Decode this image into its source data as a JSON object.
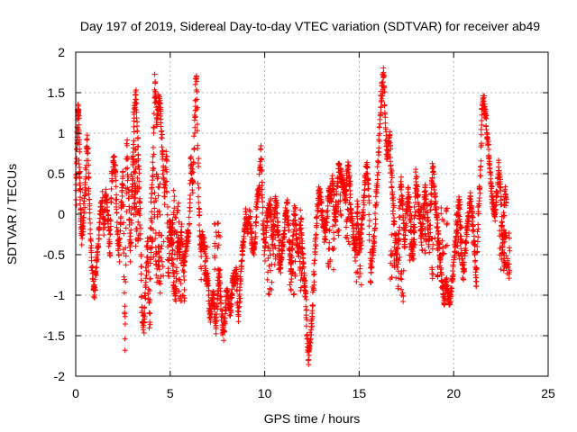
{
  "chart_data": {
    "type": "scatter",
    "title": "Day 197 of 2019, Sidereal Day-to-day VTEC variation (SDTVAR) for receiver ab49",
    "xlabel": "GPS time / hours",
    "ylabel": "SDTVAR / TECUs",
    "xlim": [
      0,
      25
    ],
    "ylim": [
      -2,
      2
    ],
    "x_ticks": [
      0,
      5,
      10,
      15,
      20,
      25
    ],
    "x_tick_labels": [
      "0",
      "5",
      "10",
      "15",
      "20",
      "25"
    ],
    "y_ticks": [
      -2,
      -1.5,
      -1,
      -0.5,
      0,
      0.5,
      1,
      1.5,
      2
    ],
    "y_tick_labels": [
      "-2",
      "-1.5",
      "-1",
      "-0.5",
      "0",
      "0.5",
      "1",
      "1.5",
      "2"
    ],
    "grid": true,
    "marker": "plus",
    "color": "#ff0000",
    "series": [
      {
        "name": "SDTVAR",
        "trace": [
          [
            0.0,
            0.0
          ],
          [
            0.05,
            0.7
          ],
          [
            0.1,
            1.25
          ],
          [
            0.15,
            1.3
          ],
          [
            0.2,
            0.6
          ],
          [
            0.25,
            0.2
          ],
          [
            0.3,
            -0.3
          ],
          [
            0.4,
            -0.1
          ],
          [
            0.5,
            0.3
          ],
          [
            0.6,
            0.95
          ],
          [
            0.7,
            0.3
          ],
          [
            0.8,
            -0.4
          ],
          [
            0.9,
            -0.8
          ],
          [
            1.0,
            -1.0
          ],
          [
            1.1,
            -0.6
          ],
          [
            1.2,
            -0.3
          ],
          [
            1.3,
            0.0
          ],
          [
            1.4,
            0.2
          ],
          [
            1.5,
            -0.2
          ],
          [
            1.6,
            0.3
          ],
          [
            1.7,
            0.0
          ],
          [
            1.8,
            -0.5
          ],
          [
            1.9,
            0.4
          ],
          [
            2.0,
            0.7
          ],
          [
            2.1,
            0.5
          ],
          [
            2.2,
            -0.2
          ],
          [
            2.3,
            -0.5
          ],
          [
            2.4,
            0.1
          ],
          [
            2.5,
            0.5
          ],
          [
            2.6,
            -1.6
          ],
          [
            2.7,
            0.9
          ],
          [
            2.8,
            0.2
          ],
          [
            2.9,
            -0.5
          ],
          [
            3.0,
            0.5
          ],
          [
            3.1,
            1.3
          ],
          [
            3.2,
            1.45
          ],
          [
            3.3,
            0.8
          ],
          [
            3.4,
            0.0
          ],
          [
            3.5,
            -1.2
          ],
          [
            3.6,
            -1.4
          ],
          [
            3.7,
            -0.9
          ],
          [
            3.8,
            -0.3
          ],
          [
            3.9,
            -1.4
          ],
          [
            4.0,
            0.2
          ],
          [
            4.1,
            0.6
          ],
          [
            4.2,
            1.7
          ],
          [
            4.3,
            1.1
          ],
          [
            4.4,
            1.5
          ],
          [
            4.5,
            1.2
          ],
          [
            4.6,
            0.7
          ],
          [
            4.7,
            0.2
          ],
          [
            4.8,
            0.8
          ],
          [
            4.9,
            -0.8
          ],
          [
            5.0,
            -0.1
          ],
          [
            5.1,
            -0.5
          ],
          [
            5.2,
            -0.9
          ],
          [
            5.3,
            -1.0
          ],
          [
            5.4,
            -0.3
          ],
          [
            5.5,
            -0.5
          ],
          [
            5.6,
            -0.2
          ],
          [
            5.7,
            -0.7
          ],
          [
            5.8,
            -0.5
          ],
          [
            5.9,
            -0.3
          ],
          [
            6.0,
            -0.2
          ],
          [
            6.1,
            0.7
          ],
          [
            6.2,
            0.3
          ],
          [
            6.3,
            1.2
          ],
          [
            6.4,
            1.75
          ],
          [
            6.5,
            0.3
          ],
          [
            6.6,
            -0.4
          ],
          [
            6.7,
            -0.3
          ],
          [
            6.8,
            -0.4
          ],
          [
            6.9,
            -0.8
          ],
          [
            7.0,
            -0.8
          ],
          [
            7.1,
            -1.3
          ],
          [
            7.2,
            -1.1
          ],
          [
            7.3,
            -1.0
          ],
          [
            7.4,
            -1.4
          ],
          [
            7.5,
            -1.0
          ],
          [
            7.6,
            -0.7
          ],
          [
            7.7,
            -1.2
          ],
          [
            7.8,
            -1.5
          ],
          [
            7.9,
            -1.3
          ],
          [
            8.0,
            -0.9
          ],
          [
            8.1,
            -1.1
          ],
          [
            8.2,
            -1.2
          ],
          [
            8.3,
            -0.8
          ],
          [
            8.4,
            -0.8
          ],
          [
            8.5,
            -0.7
          ],
          [
            8.6,
            -1.3
          ],
          [
            8.7,
            -0.9
          ],
          [
            8.8,
            -0.5
          ],
          [
            8.9,
            -0.3
          ],
          [
            9.0,
            0.0
          ],
          [
            9.1,
            -0.2
          ],
          [
            9.2,
            0.0
          ],
          [
            9.3,
            -0.3
          ],
          [
            9.4,
            -0.5
          ],
          [
            9.5,
            -0.3
          ],
          [
            9.6,
            0.2
          ],
          [
            9.7,
            0.3
          ],
          [
            9.8,
            0.8
          ],
          [
            9.9,
            0.0
          ],
          [
            10.0,
            -0.5
          ],
          [
            10.1,
            -0.1
          ],
          [
            10.2,
            0.05
          ],
          [
            10.3,
            0.1
          ],
          [
            10.4,
            -0.3
          ],
          [
            10.5,
            -0.1
          ],
          [
            10.6,
            0.2
          ],
          [
            10.7,
            -0.2
          ],
          [
            10.8,
            -0.6
          ],
          [
            10.9,
            -0.5
          ],
          [
            11.0,
            -0.3
          ],
          [
            11.1,
            0.0
          ],
          [
            11.2,
            0.1
          ],
          [
            11.3,
            -0.4
          ],
          [
            11.4,
            -0.7
          ],
          [
            11.5,
            -0.2
          ],
          [
            11.6,
            0.05
          ],
          [
            11.7,
            -0.3
          ],
          [
            11.8,
            -0.5
          ],
          [
            11.9,
            0.0
          ],
          [
            12.0,
            -0.5
          ],
          [
            12.1,
            -0.8
          ],
          [
            12.2,
            -1.2
          ],
          [
            12.3,
            -1.8
          ],
          [
            12.4,
            -1.6
          ],
          [
            12.5,
            -1.3
          ],
          [
            12.6,
            -0.8
          ],
          [
            12.7,
            -0.3
          ],
          [
            12.8,
            0.1
          ],
          [
            12.9,
            0.3
          ],
          [
            13.0,
            0.1
          ],
          [
            13.1,
            -0.1
          ],
          [
            13.2,
            -0.3
          ],
          [
            13.3,
            0.0
          ],
          [
            13.4,
            0.3
          ],
          [
            13.5,
            0.2
          ],
          [
            13.6,
            0.4
          ],
          [
            13.7,
            -0.1
          ],
          [
            13.8,
            0.1
          ],
          [
            13.9,
            0.6
          ],
          [
            14.0,
            0.5
          ],
          [
            14.1,
            0.4
          ],
          [
            14.2,
            0.3
          ],
          [
            14.3,
            0.2
          ],
          [
            14.4,
            0.6
          ],
          [
            14.5,
            0.4
          ],
          [
            14.6,
            0.0
          ],
          [
            14.7,
            -0.3
          ],
          [
            14.8,
            -0.5
          ],
          [
            14.9,
            0.1
          ],
          [
            15.0,
            -0.4
          ],
          [
            15.1,
            -0.2
          ],
          [
            15.2,
            0.0
          ],
          [
            15.3,
            0.4
          ],
          [
            15.4,
            0.6
          ],
          [
            15.5,
            0.3
          ],
          [
            15.6,
            -0.8
          ],
          [
            15.7,
            -0.5
          ],
          [
            15.8,
            -0.3
          ],
          [
            15.9,
            0.2
          ],
          [
            16.0,
            0.6
          ],
          [
            16.1,
            1.2
          ],
          [
            16.2,
            1.5
          ],
          [
            16.3,
            1.8
          ],
          [
            16.4,
            1.0
          ],
          [
            16.5,
            0.7
          ],
          [
            16.6,
            1.0
          ],
          [
            16.7,
            0.5
          ],
          [
            16.8,
            0.1
          ],
          [
            16.9,
            -0.3
          ],
          [
            17.0,
            -0.6
          ],
          [
            17.1,
            -0.2
          ],
          [
            17.2,
            0.4
          ],
          [
            17.3,
            0.1
          ],
          [
            17.4,
            -0.4
          ],
          [
            17.5,
            0.0
          ],
          [
            17.6,
            0.3
          ],
          [
            17.7,
            0.0
          ],
          [
            17.8,
            -0.5
          ],
          [
            17.9,
            -0.3
          ],
          [
            18.0,
            0.5
          ],
          [
            18.1,
            0.2
          ],
          [
            18.2,
            0.0
          ],
          [
            18.3,
            -0.3
          ],
          [
            18.4,
            0.1
          ],
          [
            18.5,
            0.3
          ],
          [
            18.6,
            0.0
          ],
          [
            18.7,
            -0.4
          ],
          [
            18.8,
            0.2
          ],
          [
            18.9,
            0.6
          ],
          [
            19.0,
            0.2
          ],
          [
            19.1,
            0.0
          ],
          [
            19.2,
            -0.3
          ],
          [
            19.3,
            -0.6
          ],
          [
            19.4,
            -0.9
          ],
          [
            19.5,
            -1.1
          ],
          [
            19.6,
            -0.8
          ],
          [
            19.7,
            -1.0
          ],
          [
            19.8,
            -1.1
          ],
          [
            19.9,
            -0.9
          ],
          [
            20.0,
            -0.6
          ],
          [
            20.1,
            -0.3
          ],
          [
            20.2,
            0.0
          ],
          [
            20.3,
            0.2
          ],
          [
            20.4,
            -0.4
          ],
          [
            20.5,
            -0.8
          ],
          [
            20.6,
            -0.5
          ],
          [
            20.7,
            -0.2
          ],
          [
            20.8,
            0.0
          ],
          [
            20.9,
            0.2
          ],
          [
            21.0,
            -0.1
          ],
          [
            21.1,
            -0.4
          ],
          [
            21.2,
            -0.9
          ],
          [
            21.3,
            0.0
          ],
          [
            21.4,
            0.4
          ],
          [
            21.5,
            1.3
          ],
          [
            21.6,
            1.4
          ],
          [
            21.7,
            1.2
          ],
          [
            21.8,
            0.9
          ],
          [
            21.9,
            0.6
          ],
          [
            22.0,
            0.3
          ],
          [
            22.1,
            0.1
          ],
          [
            22.2,
            0.0
          ],
          [
            22.3,
            0.3
          ],
          [
            22.4,
            0.6
          ],
          [
            22.5,
            0.2
          ],
          [
            22.6,
            -0.5
          ],
          [
            22.7,
            0.3
          ],
          [
            22.8,
            0.1
          ]
        ],
        "clusters": [
          [
            3.1,
            0.5
          ],
          [
            3.2,
            -0.2
          ],
          [
            3.25,
            0.3
          ],
          [
            4.1,
            -0.3
          ],
          [
            4.3,
            0.2
          ],
          [
            4.4,
            -0.7
          ],
          [
            4.5,
            -0.5
          ],
          [
            5.1,
            -0.2
          ],
          [
            5.3,
            0.0
          ],
          [
            5.6,
            -0.8
          ],
          [
            6.8,
            -0.6
          ],
          [
            7.5,
            -0.4
          ],
          [
            10.3,
            -0.7
          ],
          [
            10.7,
            -0.5
          ],
          [
            11.5,
            -0.7
          ],
          [
            12.0,
            -0.7
          ],
          [
            13.5,
            -0.4
          ],
          [
            13.9,
            0.0
          ],
          [
            14.4,
            -0.1
          ],
          [
            15.0,
            -0.6
          ],
          [
            16.8,
            -0.5
          ],
          [
            17.2,
            -0.8
          ],
          [
            17.8,
            -0.3
          ],
          [
            18.4,
            -0.2
          ],
          [
            19.0,
            -0.5
          ],
          [
            19.5,
            -0.2
          ],
          [
            20.3,
            -0.3
          ],
          [
            22.7,
            -0.4
          ],
          [
            22.8,
            -0.5
          ],
          [
            22.6,
            -0.45
          ]
        ]
      }
    ]
  }
}
